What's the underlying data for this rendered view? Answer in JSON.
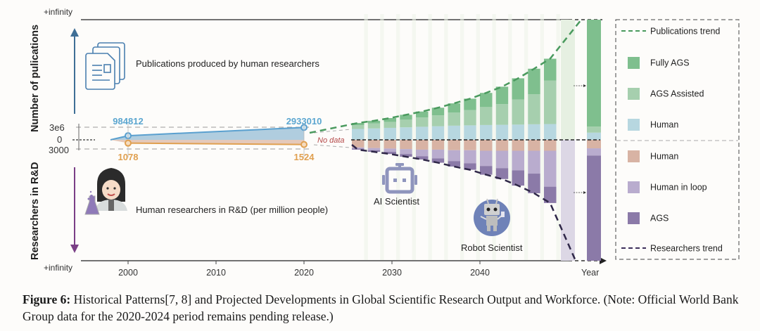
{
  "figure": {
    "caption_label": "Figure 6:",
    "caption_text": " Historical Patterns[7, 8] and Projected Developments in Global Scientific Research Output and Workforce. (Note: Official World Bank Group data for the 2020-2024 period remains pending release.)"
  },
  "chart_data": {
    "type": "bar",
    "title": "",
    "xlabel": "Year",
    "ylabel_top": "Number of pulications",
    "ylabel_bottom": "Researchers in R&D",
    "y_top_ticks": [
      "+infinity",
      "3e6",
      "0"
    ],
    "y_bottom_ticks": [
      "3000",
      "+infinity"
    ],
    "x_ticks": [
      2000,
      2010,
      2020,
      2030,
      2040
    ],
    "x_range": [
      1995,
      2050
    ],
    "annotations": {
      "publications_icon_label": "Publications produced by human researchers",
      "researchers_icon_label": "Human researchers in R&D (per million people)",
      "no_data": "No data",
      "ai_scientist": "AI Scientist",
      "robot_scientist": "Robot Scientist"
    },
    "historical": {
      "publications": {
        "name": "Publications (human)",
        "color": "#5aa0cf",
        "points": [
          {
            "x": 2000,
            "y": 984812,
            "label": "984812"
          },
          {
            "x": 2020,
            "y": 2933010,
            "label": "2933010"
          }
        ]
      },
      "researchers": {
        "name": "Researchers in R&D (per million)",
        "color": "#e0a050",
        "points": [
          {
            "x": 2000,
            "y": 1078,
            "label": "1078"
          },
          {
            "x": 2020,
            "y": 1524,
            "label": "1524"
          }
        ]
      }
    },
    "projection_years": [
      2025,
      2027,
      2029,
      2031,
      2033,
      2035,
      2037,
      2039,
      2041,
      2043,
      2045,
      2047,
      2049
    ],
    "publications_series": [
      {
        "name": "Human",
        "color": "#b7d7e0",
        "values": [
          1.0,
          1.05,
          1.1,
          1.15,
          1.2,
          1.25,
          1.3,
          1.33,
          1.36,
          1.38,
          1.4,
          1.43,
          1.45
        ]
      },
      {
        "name": "AGS Assisted",
        "color": "#a6cfae",
        "values": [
          0.35,
          0.45,
          0.55,
          0.7,
          0.85,
          1.0,
          1.2,
          1.4,
          1.65,
          1.9,
          2.3,
          2.75,
          4.0
        ]
      },
      {
        "name": "Fully AGS",
        "color": "#7fbf8e",
        "values": [
          0.2,
          0.25,
          0.35,
          0.45,
          0.55,
          0.7,
          0.85,
          1.05,
          1.3,
          1.6,
          1.95,
          2.35,
          2.0
        ]
      }
    ],
    "researchers_series": [
      {
        "name": "Human",
        "color": "#d8b3a4",
        "values": [
          0.7,
          0.75,
          0.8,
          0.85,
          0.9,
          0.9,
          0.95,
          0.95,
          1.0,
          1.0,
          1.0,
          1.0,
          1.0
        ]
      },
      {
        "name": "Human in loop",
        "color": "#b9acce",
        "values": [
          0.1,
          0.2,
          0.3,
          0.45,
          0.6,
          0.8,
          1.0,
          1.2,
          1.4,
          1.6,
          1.8,
          2.1,
          3.3
        ]
      },
      {
        "name": "AGS",
        "color": "#8b7aa8",
        "values": [
          0.1,
          0.15,
          0.2,
          0.25,
          0.3,
          0.4,
          0.5,
          0.6,
          0.8,
          1.0,
          1.4,
          1.8,
          1.5
        ]
      }
    ],
    "infinity_bar": {
      "publications": [
        {
          "name": "Human",
          "share": 0.06
        },
        {
          "name": "AGS Assisted",
          "share": 0.05
        },
        {
          "name": "Fully AGS",
          "share": 0.89
        }
      ],
      "researchers": [
        {
          "name": "Human",
          "share": 0.07
        },
        {
          "name": "Human in loop",
          "share": 0.06
        },
        {
          "name": "AGS",
          "share": 0.87
        }
      ]
    },
    "legend": {
      "placement": "right",
      "items": [
        {
          "label": "Publications trend",
          "type": "dashed",
          "color": "#4a9a5e"
        },
        {
          "label": "Fully AGS",
          "type": "box",
          "color": "#7fbf8e"
        },
        {
          "label": "AGS Assisted",
          "type": "box",
          "color": "#a6cfae"
        },
        {
          "label": "Human",
          "type": "box",
          "color": "#b7d7e0"
        },
        {
          "label": "Human",
          "type": "box",
          "color": "#d8b3a4"
        },
        {
          "label": "Human in loop",
          "type": "box",
          "color": "#b9acce"
        },
        {
          "label": "AGS",
          "type": "box",
          "color": "#8b7aa8"
        },
        {
          "label": "Researchers trend",
          "type": "dashed",
          "color": "#3d2f5a"
        }
      ]
    }
  }
}
